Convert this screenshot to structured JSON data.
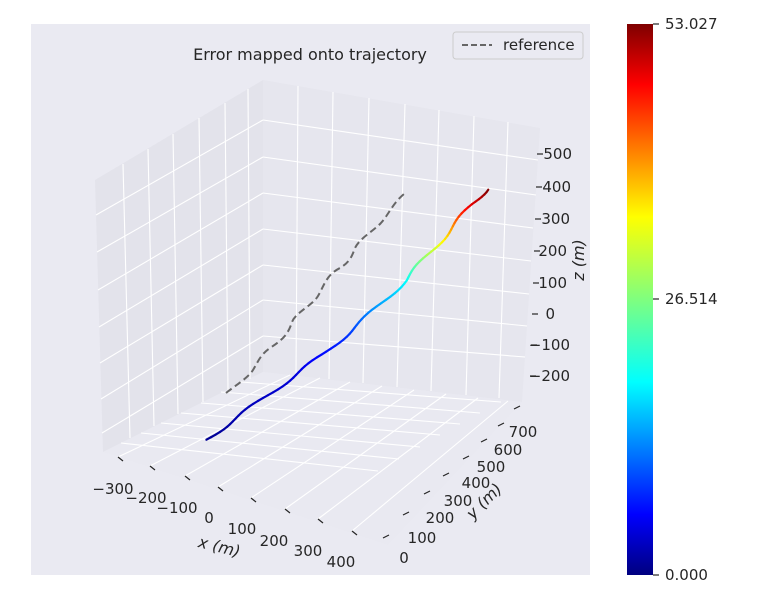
{
  "chart_data": {
    "type": "line",
    "title": "Error mapped onto trajectory",
    "xlabel": "x (m)",
    "ylabel": "y (m)",
    "zlabel": "z (m)",
    "x_ticks": [
      "−300",
      "−200",
      "−100",
      "0",
      "100",
      "200",
      "300",
      "400"
    ],
    "y_ticks": [
      "0",
      "100",
      "200",
      "300",
      "400",
      "500",
      "600",
      "700"
    ],
    "z_ticks": [
      "−200",
      "−100",
      "0",
      "100",
      "200",
      "300",
      "400",
      "500"
    ],
    "legend": {
      "label": "reference",
      "position": "top-right",
      "style": "dashed",
      "color": "#666666"
    },
    "colorbar": {
      "min": 0.0,
      "max": 53.027,
      "tick_labels": [
        "0.000",
        "26.514",
        "53.027"
      ],
      "colormap": "jet"
    },
    "series": [
      {
        "kind": "estimate",
        "note_colored_by_error": true,
        "points": [
          {
            "x": -120,
            "y": 40,
            "z": -150,
            "err": 1
          },
          {
            "x": -80,
            "y": 80,
            "z": -120,
            "err": 2
          },
          {
            "x": -40,
            "y": 130,
            "z": -90,
            "err": 3
          },
          {
            "x": 0,
            "y": 180,
            "z": -60,
            "err": 4
          },
          {
            "x": 40,
            "y": 230,
            "z": -30,
            "err": 5
          },
          {
            "x": 80,
            "y": 280,
            "z": 0,
            "err": 7
          },
          {
            "x": 110,
            "y": 330,
            "z": 30,
            "err": 9
          },
          {
            "x": 140,
            "y": 380,
            "z": 60,
            "err": 12
          },
          {
            "x": 170,
            "y": 430,
            "z": 95,
            "err": 16
          },
          {
            "x": 200,
            "y": 480,
            "z": 130,
            "err": 20
          },
          {
            "x": 225,
            "y": 520,
            "z": 170,
            "err": 26
          },
          {
            "x": 250,
            "y": 560,
            "z": 210,
            "err": 33
          },
          {
            "x": 275,
            "y": 600,
            "z": 250,
            "err": 40
          },
          {
            "x": 300,
            "y": 640,
            "z": 290,
            "err": 48
          },
          {
            "x": 320,
            "y": 670,
            "z": 320,
            "err": 53
          }
        ]
      }
    ],
    "colors": {
      "panel": "#eaeaf2",
      "grid": "#ffffff",
      "reference": "#666666"
    }
  }
}
